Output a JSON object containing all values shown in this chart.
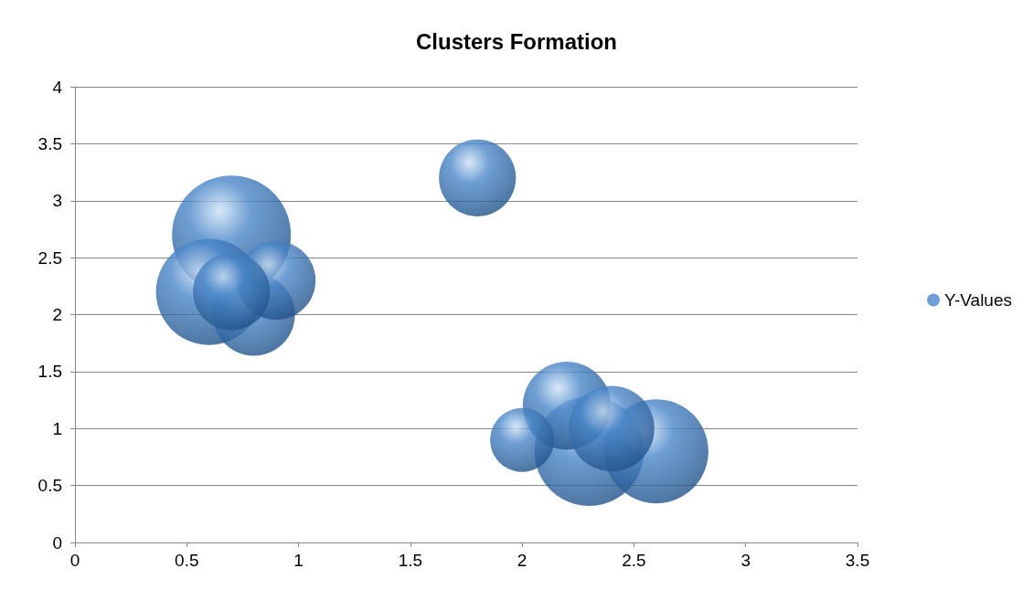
{
  "chart_data": {
    "type": "bubble",
    "title": "Clusters Formation",
    "series": [
      {
        "name": "Y-Values",
        "color": "#4a86c8",
        "x": [
          0.7,
          2.3,
          0.6,
          2.6,
          2.2,
          2.4,
          0.8,
          0.9,
          0.7,
          1.8,
          2.0
        ],
        "values": [
          2.7,
          0.8,
          2.2,
          0.8,
          1.2,
          1.0,
          2.0,
          2.3,
          2.2,
          3.2,
          0.9
        ],
        "sizes": [
          1,
          0.85,
          0.8,
          0.77,
          0.55,
          0.52,
          0.48,
          0.44,
          0.42,
          0.42,
          0.29
        ]
      }
    ],
    "xlim": [
      0,
      3.5
    ],
    "xticks": [
      0,
      0.5,
      1,
      1.5,
      2,
      2.5,
      3,
      3.5
    ],
    "ylim": [
      0,
      4
    ],
    "yticks": [
      0,
      0.5,
      1,
      1.5,
      2,
      2.5,
      3,
      3.5,
      4
    ],
    "grid": "y",
    "legend": "right",
    "marker": "circle"
  }
}
